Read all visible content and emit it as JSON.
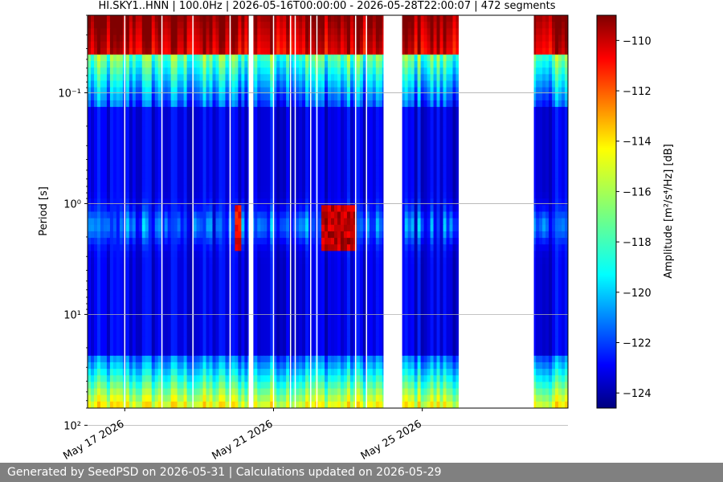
{
  "chart_data": {
    "type": "heatmap",
    "title": "HI.SKY1..HNN | 100.0Hz | 2026-05-16T00:00:00 - 2026-05-28T22:00:07 | 472 segments",
    "ylabel": "Period [s]",
    "y_scale": "log",
    "y_inverted": true,
    "ylim": [
      0.02,
      70
    ],
    "y_ticks": [
      {
        "value": 0.1,
        "label": "10⁻¹"
      },
      {
        "value": 1,
        "label": "10⁰"
      },
      {
        "value": 10,
        "label": "10¹"
      },
      {
        "value": 100,
        "label": "10²"
      }
    ],
    "xlim": [
      "2026-05-16T00:00:00",
      "2026-05-28T22:00:07"
    ],
    "x_ticks": [
      {
        "value": "2026-05-17",
        "label": "May 17 2026"
      },
      {
        "value": "2026-05-21",
        "label": "May 21 2026"
      },
      {
        "value": "2026-05-25",
        "label": "May 25 2026"
      }
    ],
    "grid": true,
    "colormap": "jet",
    "colorbar": {
      "label": "Amplitude [m²/s⁴/Hz] [dB]",
      "range": [
        -124.6,
        -109
      ],
      "ticks": [
        -110,
        -112,
        -114,
        -116,
        -118,
        -120,
        -122,
        -124
      ]
    },
    "data_gaps": [
      [
        "2026-05-20T08:00",
        "2026-05-20T11:00"
      ],
      [
        "2026-05-23T23:00",
        "2026-05-24T11:00"
      ],
      [
        "2026-05-25T23:30",
        "2026-05-28T00:00"
      ]
    ],
    "segment_boundaries": [
      "2026-05-17T00:00",
      "2026-05-18T00:00",
      "2026-05-18T20:00",
      "2026-05-19T20:00",
      "2026-05-21T00:00",
      "2026-05-21T11:00",
      "2026-05-21T14:00",
      "2026-05-22T00:00",
      "2026-05-22T04:00",
      "2026-05-23T05:00",
      "2026-05-23T12:00"
    ],
    "features": [
      {
        "description_period_s": [
          1,
          2.5
        ],
        "time": [
          "2026-05-22T06:00",
          "2026-05-23T05:00"
        ],
        "level_db": -110
      },
      {
        "description_period_s": [
          1,
          2.5
        ],
        "time": [
          "2026-05-19T23:00",
          "2026-05-20T04:00"
        ],
        "level_db": -111
      }
    ],
    "levels": {
      "short_period_band_db": -117,
      "mid_period_band_db": -123,
      "long_period_band_db": -112
    }
  },
  "footer": {
    "text": "Generated by SeedPSD on 2026-05-31 | Calculations updated on 2026-05-29"
  }
}
